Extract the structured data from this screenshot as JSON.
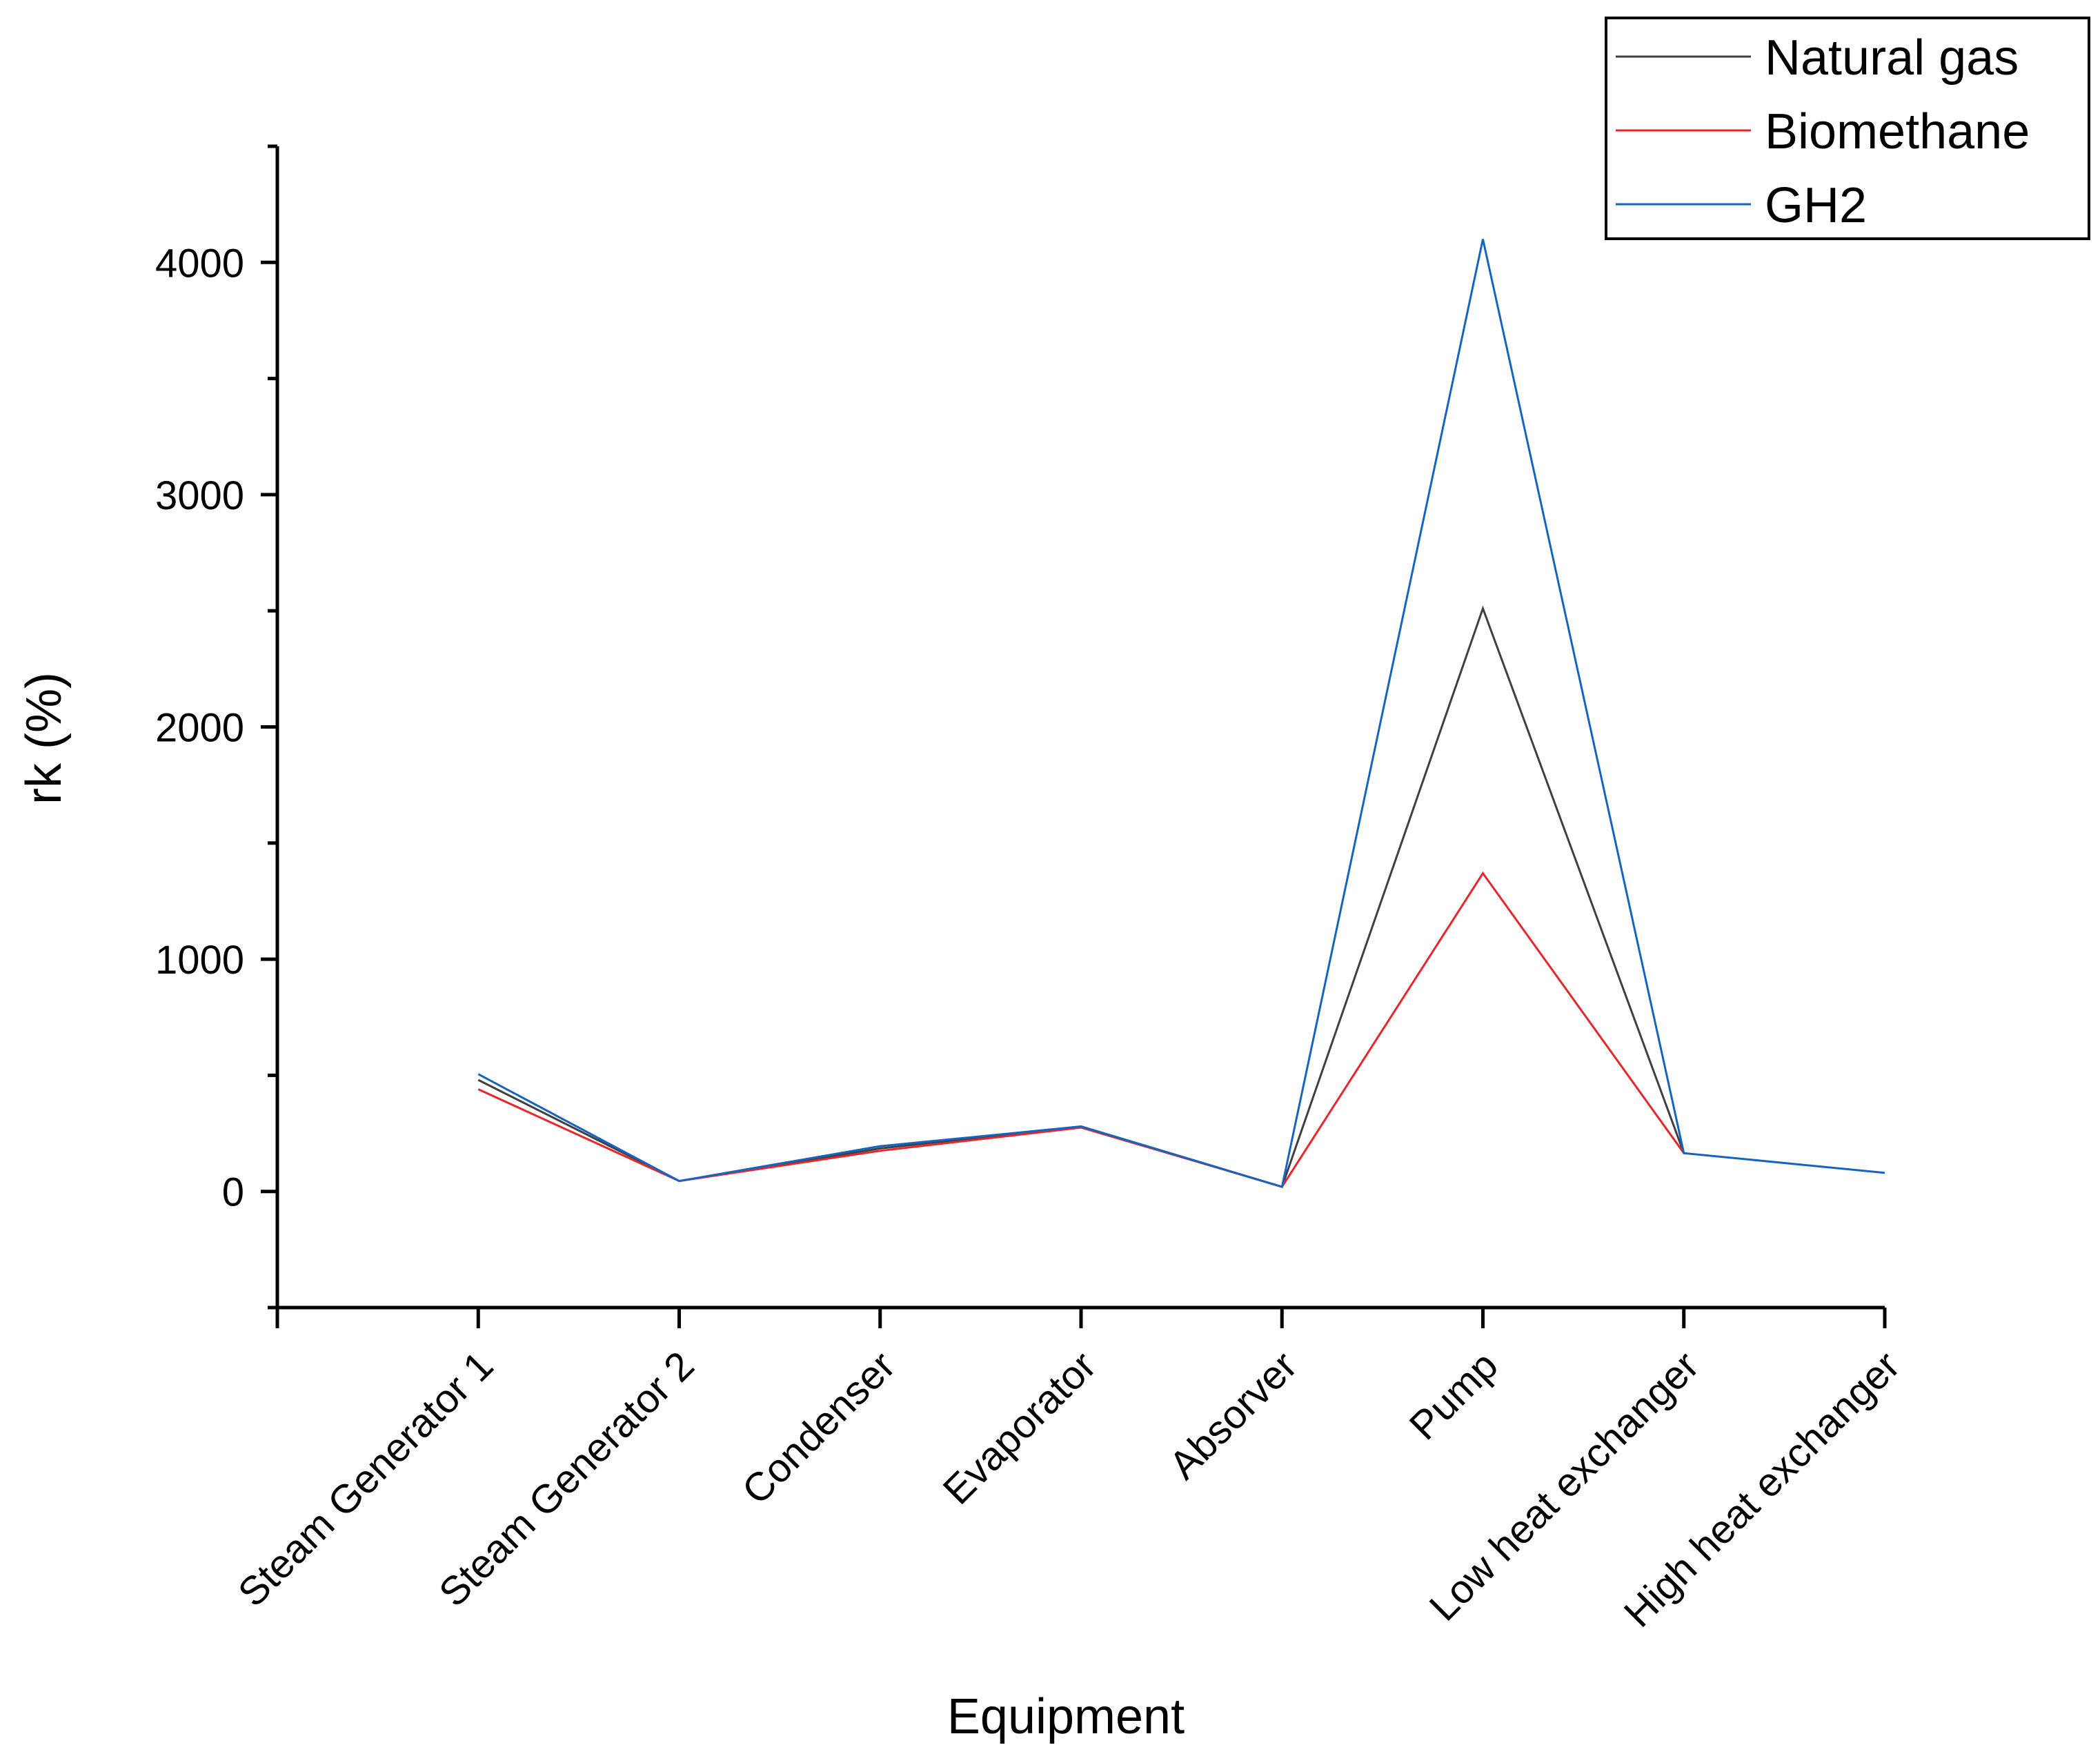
{
  "chart_data": {
    "type": "line",
    "title": "",
    "xlabel": "Equipment",
    "ylabel": "rk (%)",
    "categories": [
      "Steam Generator 1",
      "Steam Generator 2",
      "Condenser",
      "Evaporator",
      "Absorver",
      "Pump",
      "Low heat exchanger",
      "High heat exchanger"
    ],
    "ylim": [
      -500,
      4500
    ],
    "yticks": [
      0,
      1000,
      2000,
      3000,
      4000
    ],
    "grid": false,
    "legend_position": "top-right",
    "series": [
      {
        "name": "Natural gas",
        "color": "#404040",
        "values": [
          480,
          45,
          185,
          280,
          20,
          2510,
          165,
          null
        ]
      },
      {
        "name": "Biomethane",
        "color": "#e8262a",
        "values": [
          440,
          45,
          175,
          275,
          20,
          1370,
          165,
          null
        ]
      },
      {
        "name": "GH2",
        "color": "#1565c0",
        "values": [
          505,
          45,
          195,
          280,
          20,
          4100,
          165,
          80
        ]
      }
    ]
  }
}
